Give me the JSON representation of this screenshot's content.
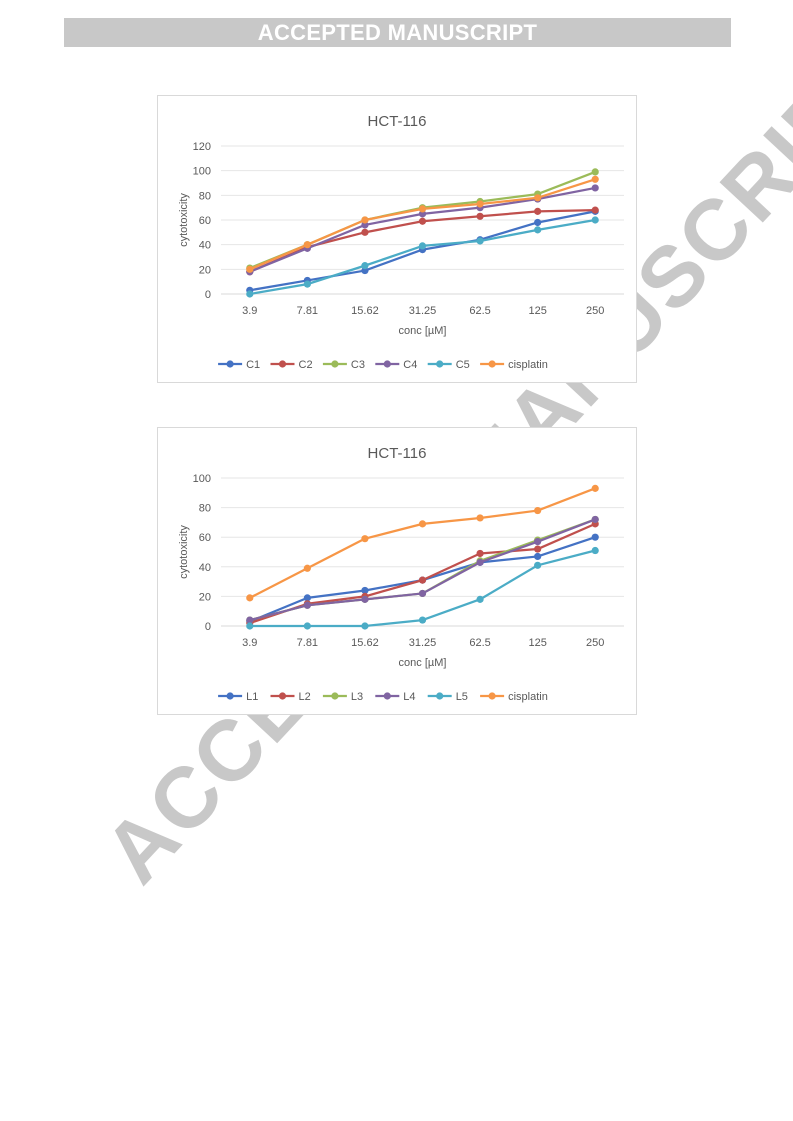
{
  "banner": {
    "text": "ACCEPTED MANUSCRIPT"
  },
  "watermark": {
    "text": "ACCEPTED MANUSCRIPT"
  },
  "chart_data": [
    {
      "type": "line",
      "title": "HCT-116",
      "xlabel": "conc [µM]",
      "ylabel": "cytotoxicity",
      "categories": [
        "3.9",
        "7.81",
        "15.62",
        "31.25",
        "62.5",
        "125",
        "250"
      ],
      "ylim": [
        0,
        120
      ],
      "yticks": [
        0,
        20,
        40,
        60,
        80,
        100,
        120
      ],
      "grid": true,
      "legend_position": "bottom",
      "series": [
        {
          "name": "C1",
          "color": "#4472c4",
          "values": [
            3,
            11,
            19,
            36,
            44,
            58,
            67
          ]
        },
        {
          "name": "C2",
          "color": "#c0504d",
          "values": [
            18,
            38,
            50,
            59,
            63,
            67,
            68
          ]
        },
        {
          "name": "C3",
          "color": "#9bbb59",
          "values": [
            21,
            40,
            60,
            70,
            75,
            81,
            99
          ]
        },
        {
          "name": "C4",
          "color": "#8064a2",
          "values": [
            18,
            37,
            56,
            65,
            70,
            77,
            86
          ]
        },
        {
          "name": "C5",
          "color": "#4bacc6",
          "values": [
            0,
            8,
            23,
            39,
            43,
            52,
            60
          ]
        },
        {
          "name": "cisplatin",
          "color": "#f79646",
          "values": [
            20,
            40,
            60,
            69,
            73,
            78,
            93
          ]
        }
      ]
    },
    {
      "type": "line",
      "title": "HCT-116",
      "xlabel": "conc [µM]",
      "ylabel": "cytotoxicity",
      "categories": [
        "3.9",
        "7.81",
        "15.62",
        "31.25",
        "62.5",
        "125",
        "250"
      ],
      "ylim": [
        0,
        100
      ],
      "yticks": [
        0,
        20,
        40,
        60,
        80,
        100
      ],
      "grid": true,
      "legend_position": "bottom",
      "series": [
        {
          "name": "L1",
          "color": "#4472c4",
          "values": [
            3,
            19,
            24,
            31,
            43,
            47,
            60
          ]
        },
        {
          "name": "L2",
          "color": "#c0504d",
          "values": [
            2,
            15,
            20,
            31,
            49,
            52,
            69
          ]
        },
        {
          "name": "L3",
          "color": "#9bbb59",
          "values": [
            4,
            14,
            18,
            22,
            44,
            58,
            72
          ]
        },
        {
          "name": "L4",
          "color": "#8064a2",
          "values": [
            4,
            14,
            18,
            22,
            43,
            57,
            72
          ]
        },
        {
          "name": "L5",
          "color": "#4bacc6",
          "values": [
            0,
            0,
            0,
            4,
            18,
            41,
            51
          ]
        },
        {
          "name": "cisplatin",
          "color": "#f79646",
          "values": [
            19,
            39,
            59,
            69,
            73,
            78,
            93
          ]
        }
      ]
    }
  ]
}
